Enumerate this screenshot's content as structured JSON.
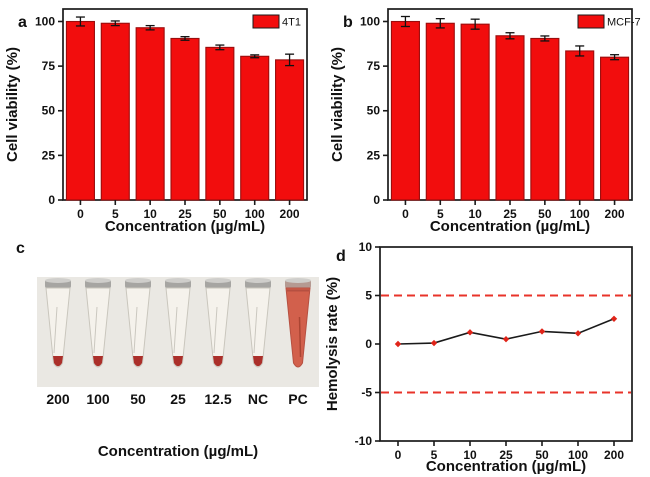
{
  "figure": {
    "background": "#ffffff",
    "accent_red": "#f20d0d",
    "axis_color": "#1a1a1a"
  },
  "chart_data": [
    {
      "id": "a",
      "type": "bar",
      "panel_label": "a",
      "legend": {
        "label": "4T1",
        "position": "top-right",
        "swatch_color": "#f20d0d"
      },
      "categories": [
        "0",
        "5",
        "10",
        "25",
        "50",
        "100",
        "200"
      ],
      "values": [
        100,
        99,
        96.5,
        90.5,
        85.5,
        80.5,
        78.5
      ],
      "errors": [
        2.5,
        1.3,
        1.2,
        1.0,
        1.3,
        0.8,
        3.2
      ],
      "title": "",
      "xlabel": "Concentration (µg/mL)",
      "ylabel": "Cell viability (%)",
      "ylim": [
        0,
        107
      ],
      "yticks": [
        0,
        25,
        50,
        75,
        100
      ],
      "bar_color": "#f20d0d",
      "bar_edge_color": "#9b0c0c",
      "error_bar_color": "#111111",
      "grid": false
    },
    {
      "id": "b",
      "type": "bar",
      "panel_label": "b",
      "legend": {
        "label": "MCF-7",
        "position": "top-right",
        "swatch_color": "#f20d0d"
      },
      "categories": [
        "0",
        "5",
        "10",
        "25",
        "50",
        "100",
        "200"
      ],
      "values": [
        100,
        99,
        98.5,
        92,
        90.5,
        83.5,
        80
      ],
      "errors": [
        2.8,
        2.6,
        2.8,
        1.7,
        1.4,
        2.8,
        1.4
      ],
      "title": "",
      "xlabel": "Concentration (µg/mL)",
      "ylabel": "Cell viability (%)",
      "ylim": [
        0,
        107
      ],
      "yticks": [
        0,
        25,
        50,
        75,
        100
      ],
      "bar_color": "#f20d0d",
      "bar_edge_color": "#9b0c0c",
      "error_bar_color": "#111111",
      "grid": false
    },
    {
      "id": "d",
      "type": "line",
      "panel_label": "d",
      "categories": [
        "0",
        "5",
        "10",
        "25",
        "50",
        "100",
        "200"
      ],
      "values": [
        0,
        0.1,
        1.2,
        0.5,
        1.3,
        1.1,
        2.6
      ],
      "reference_lines": [
        {
          "y": 5,
          "style": "dashed",
          "color": "#e8332a"
        },
        {
          "y": -5,
          "style": "dashed",
          "color": "#e8332a"
        }
      ],
      "title": "",
      "xlabel": "Concentration (µg/mL)",
      "ylabel": "Hemolysis rate (%)",
      "ylim": [
        -10,
        10
      ],
      "yticks": [
        -10,
        -5,
        0,
        5,
        10
      ],
      "line_color": "#1a1a1a",
      "marker": "diamond",
      "marker_color": "#e02419",
      "grid": false
    }
  ],
  "photo_panel": {
    "id": "c",
    "panel_label": "c",
    "description": "Photograph of hemolysis assay microcentrifuge tubes",
    "tube_labels": [
      "200",
      "100",
      "50",
      "25",
      "12.5",
      "NC",
      "PC"
    ],
    "tube_types": [
      "clear",
      "clear",
      "clear",
      "clear",
      "clear",
      "clear",
      "hemolyzed"
    ],
    "xlabel": "Concentration (µg/mL)",
    "colors": {
      "background": "#eae8e3",
      "tube_body": "#f5f3ec",
      "tube_stroke": "#c9c6bd",
      "tube_cap": "#a6a5a2",
      "tube_cap_top": "#cfcecb",
      "pellet": "#ab2f2a",
      "hemolyzed_fill": "#d2604c",
      "hemolyzed_stroke": "#b65041"
    }
  }
}
